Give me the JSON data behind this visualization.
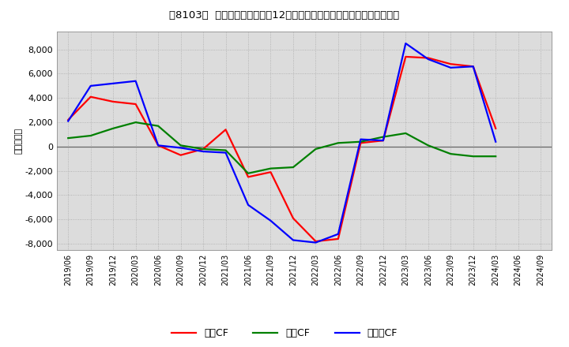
{
  "title": "Ｘ8103Ｙ  キャッシュフローの12か月移動合計の対前年同期増減額の推移",
  "ylabel": "（百万円）",
  "background_color": "#ffffff",
  "plot_bg_color": "#dcdcdc",
  "ylim": [
    -8500,
    9500
  ],
  "yticks": [
    -8000,
    -6000,
    -4000,
    -2000,
    0,
    2000,
    4000,
    6000,
    8000
  ],
  "x_labels": [
    "2019/06",
    "2019/09",
    "2019/12",
    "2020/03",
    "2020/06",
    "2020/09",
    "2020/12",
    "2021/03",
    "2021/06",
    "2021/09",
    "2021/12",
    "2022/03",
    "2022/06",
    "2022/09",
    "2022/12",
    "2023/03",
    "2023/06",
    "2023/09",
    "2023/12",
    "2024/03",
    "2024/06",
    "2024/09"
  ],
  "eigyo_cf": [
    2200,
    4100,
    3700,
    3500,
    100,
    -700,
    -200,
    1400,
    -2500,
    -2100,
    -5900,
    -7800,
    -7600,
    300,
    500,
    7400,
    7300,
    6800,
    6600,
    1500,
    null,
    null
  ],
  "toshi_cf": [
    700,
    900,
    1500,
    2000,
    1700,
    100,
    -200,
    -300,
    -2200,
    -1800,
    -1700,
    -200,
    300,
    400,
    800,
    1100,
    100,
    -600,
    -800,
    -800,
    null,
    null
  ],
  "free_cf": [
    2100,
    5000,
    5200,
    5400,
    100,
    -100,
    -400,
    -500,
    -4800,
    -6100,
    -7700,
    -7900,
    -7200,
    600,
    500,
    8500,
    7200,
    6500,
    6600,
    400,
    null,
    null
  ],
  "eigyo_color": "#ff0000",
  "toshi_color": "#008000",
  "free_color": "#0000ff",
  "line_width": 1.6,
  "legend_labels": [
    "営業CF",
    "投資CF",
    "フリーCF"
  ]
}
